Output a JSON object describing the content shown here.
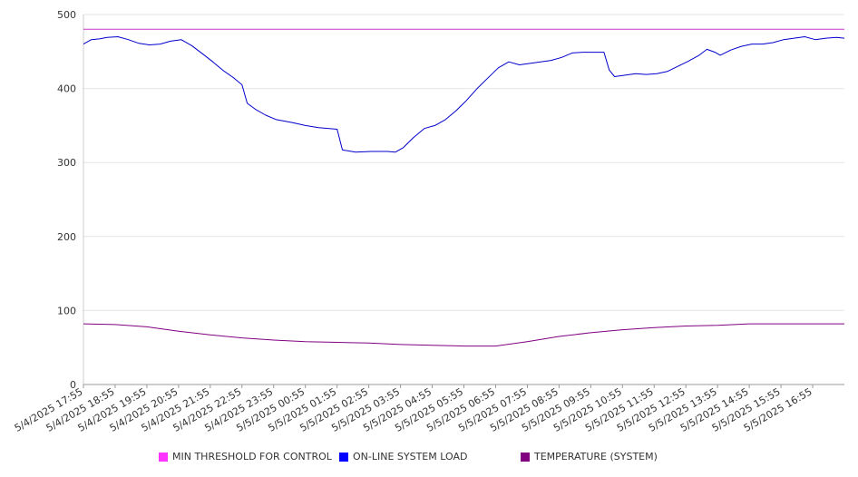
{
  "chart_data": {
    "type": "line",
    "title": "",
    "xlabel": "",
    "ylabel": "",
    "ylim": [
      0,
      500
    ],
    "yticks": [
      0,
      100,
      200,
      300,
      400,
      500
    ],
    "grid": true,
    "legend_position": "bottom",
    "x_ticks": [
      "5/4/2025 17:55",
      "5/4/2025 18:55",
      "5/4/2025 19:55",
      "5/4/2025 20:55",
      "5/4/2025 21:55",
      "5/4/2025 22:55",
      "5/4/2025 23:55",
      "5/5/2025 00:55",
      "5/5/2025 01:55",
      "5/5/2025 02:55",
      "5/5/2025 03:55",
      "5/5/2025 04:55",
      "5/5/2025 05:55",
      "5/5/2025 06:55",
      "5/5/2025 07:55",
      "5/5/2025 08:55",
      "5/5/2025 09:55",
      "5/5/2025 10:55",
      "5/5/2025 11:55",
      "5/5/2025 12:55",
      "5/5/2025 13:55",
      "5/5/2025 14:55",
      "5/5/2025 15:55",
      "5/5/2025 16:55"
    ],
    "series": [
      {
        "name": "MIN THRESHOLD FOR CONTROL",
        "color": "#cc33cc",
        "points": [
          [
            "5/4/2025 17:55",
            480
          ],
          [
            "5/5/2025 17:55",
            480
          ]
        ]
      },
      {
        "name": "ON-LINE SYSTEM LOAD",
        "color": "#0000cc",
        "points": [
          [
            "5/4/2025 17:55",
            460
          ],
          [
            "5/4/2025 18:10",
            466
          ],
          [
            "5/4/2025 18:25",
            467
          ],
          [
            "5/4/2025 18:40",
            469
          ],
          [
            "5/4/2025 19:00",
            470
          ],
          [
            "5/4/2025 19:20",
            466
          ],
          [
            "5/4/2025 19:40",
            461
          ],
          [
            "5/4/2025 20:00",
            459
          ],
          [
            "5/4/2025 20:20",
            460
          ],
          [
            "5/4/2025 20:40",
            464
          ],
          [
            "5/4/2025 21:00",
            466
          ],
          [
            "5/4/2025 21:20",
            458
          ],
          [
            "5/4/2025 21:40",
            447
          ],
          [
            "5/4/2025 22:00",
            436
          ],
          [
            "5/4/2025 22:20",
            424
          ],
          [
            "5/4/2025 22:40",
            414
          ],
          [
            "5/4/2025 22:55",
            405
          ],
          [
            "5/4/2025 23:05",
            380
          ],
          [
            "5/4/2025 23:20",
            372
          ],
          [
            "5/4/2025 23:40",
            364
          ],
          [
            "5/5/2025 00:00",
            358
          ],
          [
            "5/5/2025 00:30",
            354
          ],
          [
            "5/5/2025 00:55",
            350
          ],
          [
            "5/5/2025 01:20",
            347
          ],
          [
            "5/5/2025 01:55",
            345
          ],
          [
            "5/5/2025 02:05",
            317
          ],
          [
            "5/5/2025 02:30",
            314
          ],
          [
            "5/5/2025 03:00",
            315
          ],
          [
            "5/5/2025 03:30",
            315
          ],
          [
            "5/5/2025 03:45",
            314
          ],
          [
            "5/5/2025 04:00",
            320
          ],
          [
            "5/5/2025 04:20",
            334
          ],
          [
            "5/5/2025 04:40",
            346
          ],
          [
            "5/5/2025 05:00",
            350
          ],
          [
            "5/5/2025 05:20",
            358
          ],
          [
            "5/5/2025 05:40",
            370
          ],
          [
            "5/5/2025 06:00",
            384
          ],
          [
            "5/5/2025 06:20",
            400
          ],
          [
            "5/5/2025 06:40",
            414
          ],
          [
            "5/5/2025 07:00",
            428
          ],
          [
            "5/5/2025 07:20",
            436
          ],
          [
            "5/5/2025 07:40",
            432
          ],
          [
            "5/5/2025 08:00",
            434
          ],
          [
            "5/5/2025 08:20",
            436
          ],
          [
            "5/5/2025 08:40",
            438
          ],
          [
            "5/5/2025 09:00",
            442
          ],
          [
            "5/5/2025 09:20",
            448
          ],
          [
            "5/5/2025 09:40",
            449
          ],
          [
            "5/5/2025 10:00",
            449
          ],
          [
            "5/5/2025 10:20",
            449
          ],
          [
            "5/5/2025 10:30",
            425
          ],
          [
            "5/5/2025 10:40",
            416
          ],
          [
            "5/5/2025 11:00",
            418
          ],
          [
            "5/5/2025 11:20",
            420
          ],
          [
            "5/5/2025 11:40",
            419
          ],
          [
            "5/5/2025 12:00",
            420
          ],
          [
            "5/5/2025 12:20",
            423
          ],
          [
            "5/5/2025 12:40",
            430
          ],
          [
            "5/5/2025 13:00",
            437
          ],
          [
            "5/5/2025 13:20",
            445
          ],
          [
            "5/5/2025 13:35",
            453
          ],
          [
            "5/5/2025 13:50",
            449
          ],
          [
            "5/5/2025 14:00",
            445
          ],
          [
            "5/5/2025 14:20",
            452
          ],
          [
            "5/5/2025 14:40",
            457
          ],
          [
            "5/5/2025 15:00",
            460
          ],
          [
            "5/5/2025 15:20",
            460
          ],
          [
            "5/5/2025 15:40",
            462
          ],
          [
            "5/5/2025 16:00",
            466
          ],
          [
            "5/5/2025 16:20",
            468
          ],
          [
            "5/5/2025 16:40",
            470
          ],
          [
            "5/5/2025 17:00",
            466
          ],
          [
            "5/5/2025 17:20",
            468
          ],
          [
            "5/5/2025 17:40",
            469
          ],
          [
            "5/5/2025 17:55",
            468
          ]
        ]
      },
      {
        "name": "TEMPERATURE (SYSTEM)",
        "color": "#800080",
        "points": [
          [
            "5/4/2025 17:55",
            82
          ],
          [
            "5/4/2025 18:55",
            81
          ],
          [
            "5/4/2025 19:55",
            78
          ],
          [
            "5/4/2025 20:55",
            72
          ],
          [
            "5/4/2025 21:55",
            67
          ],
          [
            "5/4/2025 22:55",
            63
          ],
          [
            "5/4/2025 23:55",
            60
          ],
          [
            "5/5/2025 00:55",
            58
          ],
          [
            "5/5/2025 01:55",
            57
          ],
          [
            "5/5/2025 02:55",
            56
          ],
          [
            "5/5/2025 03:55",
            54
          ],
          [
            "5/5/2025 04:55",
            53
          ],
          [
            "5/5/2025 05:55",
            52
          ],
          [
            "5/5/2025 06:55",
            52
          ],
          [
            "5/5/2025 07:55",
            58
          ],
          [
            "5/5/2025 08:55",
            65
          ],
          [
            "5/5/2025 09:55",
            70
          ],
          [
            "5/5/2025 10:55",
            74
          ],
          [
            "5/5/2025 11:55",
            77
          ],
          [
            "5/5/2025 12:55",
            79
          ],
          [
            "5/5/2025 13:55",
            80
          ],
          [
            "5/5/2025 14:55",
            82
          ],
          [
            "5/5/2025 15:55",
            82
          ],
          [
            "5/5/2025 16:55",
            82
          ],
          [
            "5/5/2025 17:55",
            82
          ]
        ]
      }
    ]
  }
}
